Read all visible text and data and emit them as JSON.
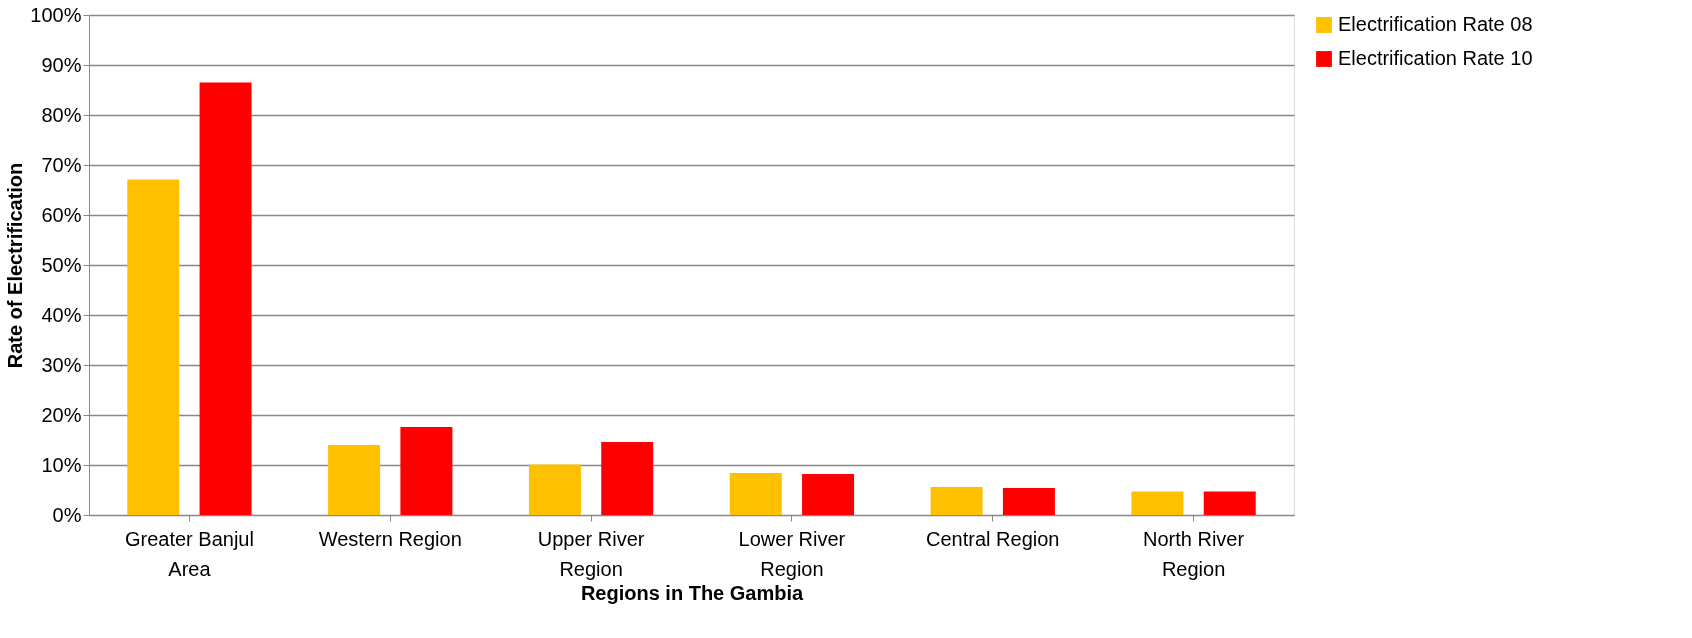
{
  "chart_data": {
    "type": "bar",
    "xlabel": "Regions in The Gambia",
    "ylabel": "Rate of Electrification",
    "categories": [
      "Greater Banjul Area",
      "Western Region",
      "Upper River Region",
      "Lower River Region",
      "Central Region",
      "North River Region"
    ],
    "series": [
      {
        "name": "Electrification Rate 08",
        "color": "#ffc000",
        "values": [
          67.1,
          14.0,
          10.1,
          8.4,
          5.6,
          4.7
        ]
      },
      {
        "name": "Electrification Rate 10",
        "color": "#ff0000",
        "values": [
          86.5,
          17.6,
          14.6,
          8.2,
          5.4,
          4.7
        ]
      }
    ],
    "ylim": [
      0,
      100
    ],
    "yticks": [
      {
        "value": 0,
        "label": "0%"
      },
      {
        "value": 10,
        "label": "10%"
      },
      {
        "value": 20,
        "label": "20%"
      },
      {
        "value": 30,
        "label": "30%"
      },
      {
        "value": 40,
        "label": "40%"
      },
      {
        "value": 50,
        "label": "50%"
      },
      {
        "value": 60,
        "label": "60%"
      },
      {
        "value": 70,
        "label": "70%"
      },
      {
        "value": 80,
        "label": "80%"
      },
      {
        "value": 90,
        "label": "90%"
      },
      {
        "value": 100,
        "label": "100%"
      }
    ],
    "grid": "y",
    "legend": "right"
  }
}
